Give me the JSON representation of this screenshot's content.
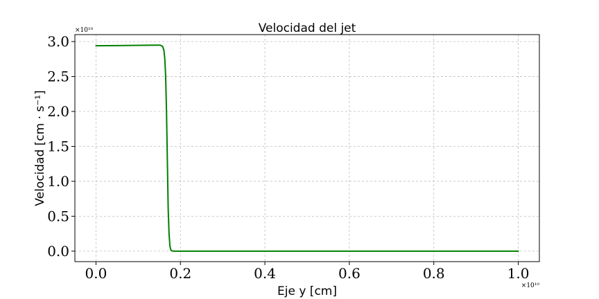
{
  "chart_data": {
    "type": "line",
    "title": "Velocidad del jet",
    "xlabel": "Eje y [cm]",
    "ylabel": "Velocidad [cm · s⁻¹]",
    "x_offset_label": "×10¹⁰",
    "y_offset_label": "×10¹⁰",
    "xlim": [
      -0.05,
      1.05
    ],
    "ylim": [
      -0.15,
      3.1
    ],
    "xticks": [
      0.0,
      0.2,
      0.4,
      0.6,
      0.8,
      1.0
    ],
    "xtick_labels": [
      "0.0",
      "0.2",
      "0.4",
      "0.6",
      "0.8",
      "1.0"
    ],
    "yticks": [
      0.0,
      0.5,
      1.0,
      1.5,
      2.0,
      2.5,
      3.0
    ],
    "ytick_labels": [
      "0.0",
      "0.5",
      "1.0",
      "1.5",
      "2.0",
      "2.5",
      "3.0"
    ],
    "grid": true,
    "series": [
      {
        "color": "#008000",
        "x": [
          0.0,
          0.05,
          0.1,
          0.14,
          0.152,
          0.158,
          0.161,
          0.163,
          0.165,
          0.167,
          0.169,
          0.171,
          0.173,
          0.175,
          0.177,
          0.18,
          0.185,
          0.2,
          0.3,
          0.4,
          0.5,
          0.6,
          0.7,
          0.8,
          0.9,
          1.0
        ],
        "y": [
          2.94,
          2.943,
          2.946,
          2.949,
          2.949,
          2.93,
          2.87,
          2.75,
          2.5,
          2.0,
          1.3,
          0.6,
          0.25,
          0.08,
          0.02,
          0.003,
          0.0,
          0.0,
          0.0,
          0.0,
          0.0,
          0.0,
          0.0,
          0.0,
          0.0,
          0.0
        ]
      }
    ]
  }
}
